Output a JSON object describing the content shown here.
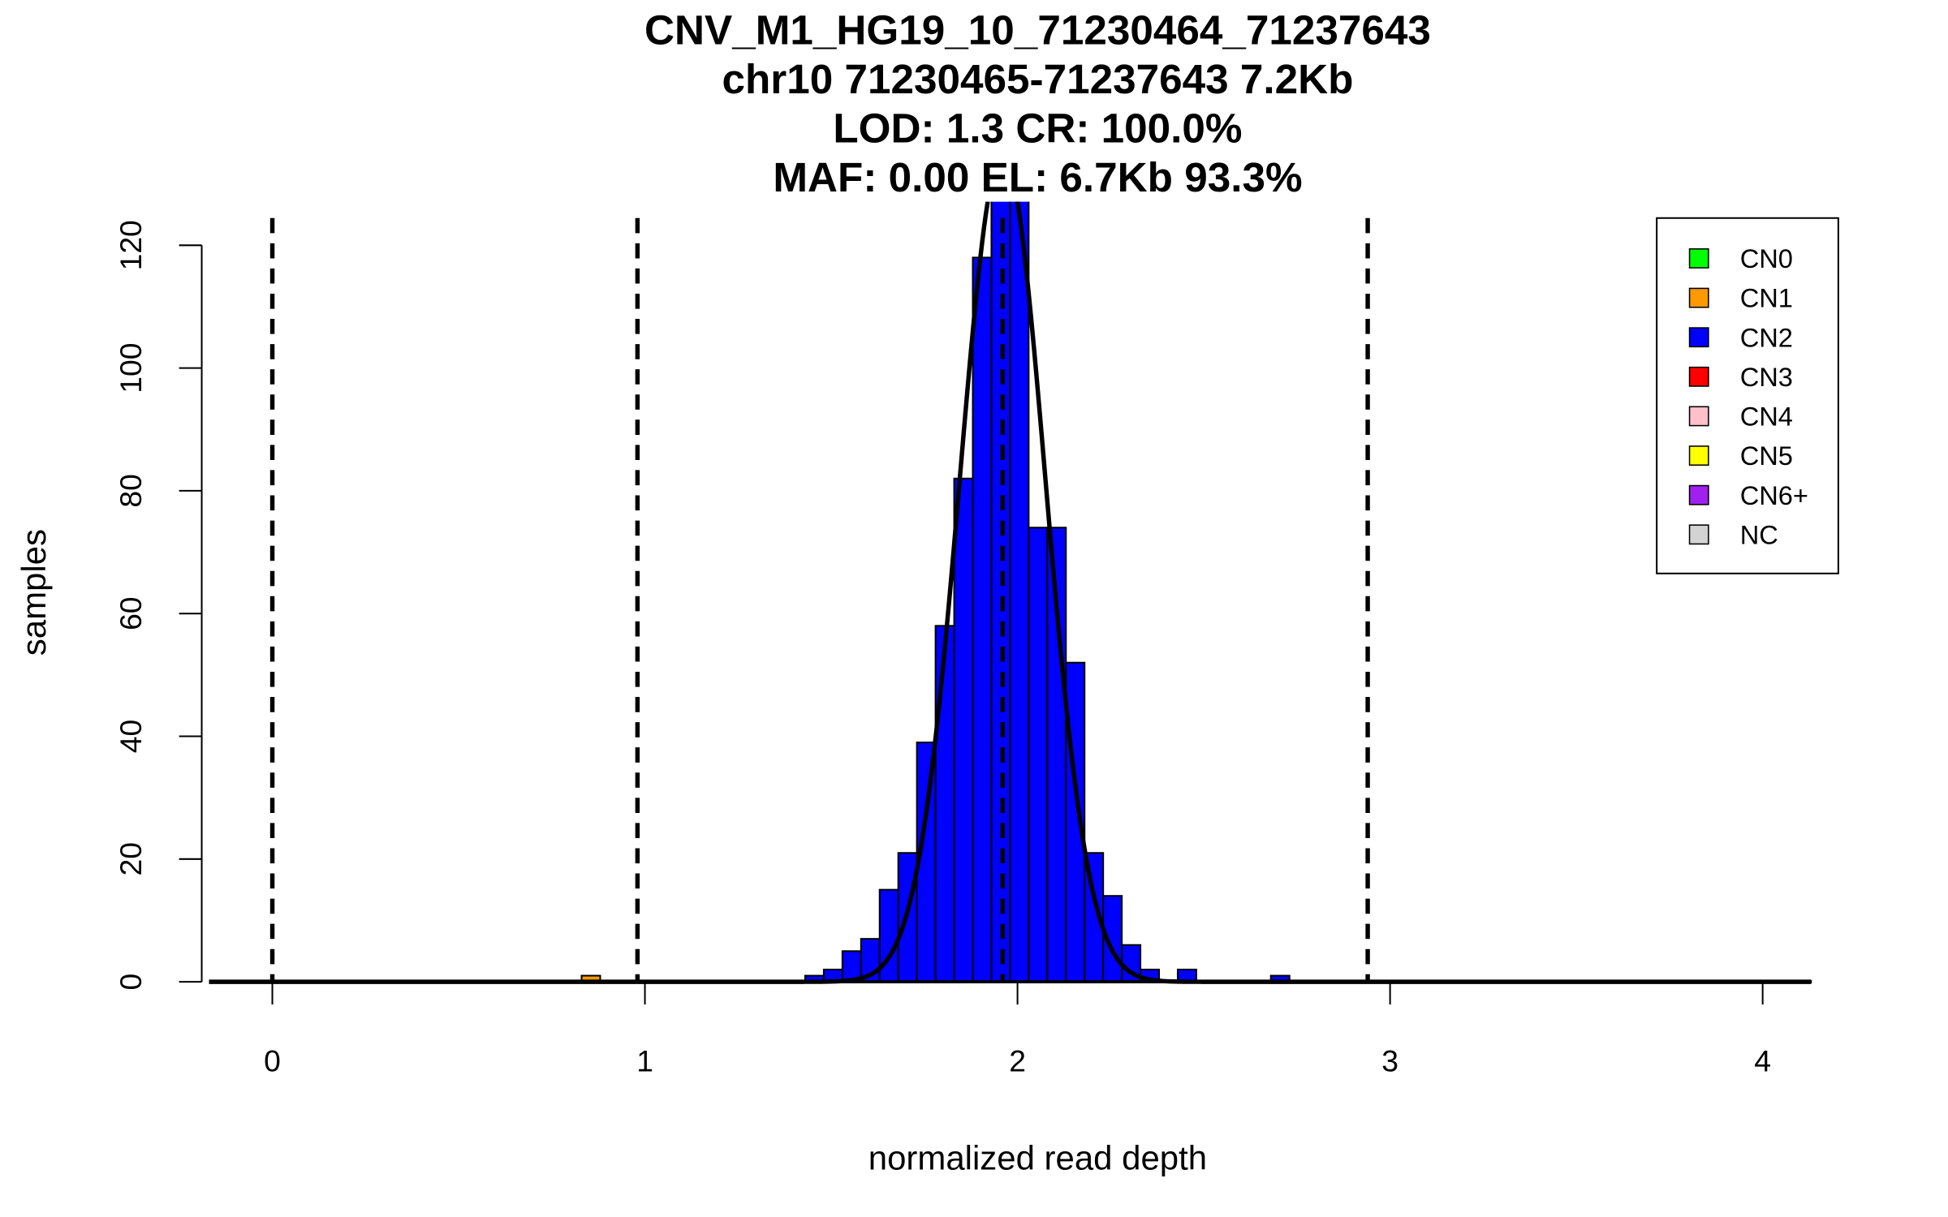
{
  "chart_data": {
    "type": "bar",
    "title_lines": [
      "CNV_M1_HG19_10_71230464_71237643",
      "chr10 71230465-71237643 7.2Kb",
      "LOD: 1.3 CR: 100.0%",
      "MAF: 0.00 EL: 6.7Kb 93.3%"
    ],
    "xlabel": "normalized read depth",
    "ylabel": "samples",
    "xlim": [
      -0.17,
      4.13
    ],
    "ylim": [
      0,
      127
    ],
    "x_ticks": [
      0,
      1,
      2,
      3,
      4
    ],
    "x_tick_labels": [
      "0",
      "1",
      "2",
      "3",
      "4"
    ],
    "y_ticks": [
      0,
      20,
      40,
      60,
      80,
      100,
      120
    ],
    "y_tick_labels": [
      "0",
      "20",
      "40",
      "60",
      "80",
      "100",
      "120"
    ],
    "bin_width": 0.05,
    "series": [
      {
        "name": "CN1",
        "color": "#FF9900",
        "bins": [
          {
            "start": 0.83,
            "count": 1
          }
        ]
      },
      {
        "name": "CN2",
        "color": "#0000FF",
        "bins": [
          {
            "start": 1.43,
            "count": 1
          },
          {
            "start": 1.48,
            "count": 2
          },
          {
            "start": 1.53,
            "count": 5
          },
          {
            "start": 1.58,
            "count": 7
          },
          {
            "start": 1.63,
            "count": 15
          },
          {
            "start": 1.68,
            "count": 21
          },
          {
            "start": 1.73,
            "count": 39
          },
          {
            "start": 1.78,
            "count": 58
          },
          {
            "start": 1.83,
            "count": 82
          },
          {
            "start": 1.88,
            "count": 118
          },
          {
            "start": 1.93,
            "count": 135
          },
          {
            "start": 1.98,
            "count": 130
          },
          {
            "start": 2.03,
            "count": 74
          },
          {
            "start": 2.08,
            "count": 74
          },
          {
            "start": 2.13,
            "count": 52
          },
          {
            "start": 2.18,
            "count": 21
          },
          {
            "start": 2.23,
            "count": 14
          },
          {
            "start": 2.28,
            "count": 6
          },
          {
            "start": 2.33,
            "count": 2
          },
          {
            "start": 2.43,
            "count": 2
          },
          {
            "start": 2.68,
            "count": 1
          }
        ]
      }
    ],
    "fit_curve": {
      "mean": 1.96,
      "sd": 0.115,
      "peak": 135
    },
    "dashed_lines_x": [
      0,
      0.98,
      1.96,
      2.94
    ],
    "legend": {
      "placement": "top-right",
      "entries": [
        {
          "label": "CN0",
          "color": "#00FF00"
        },
        {
          "label": "CN1",
          "color": "#FF9900"
        },
        {
          "label": "CN2",
          "color": "#0000FF"
        },
        {
          "label": "CN3",
          "color": "#FF0000"
        },
        {
          "label": "CN4",
          "color": "#FFC0CB"
        },
        {
          "label": "CN5",
          "color": "#FFFF00"
        },
        {
          "label": "CN6+",
          "color": "#A020F0"
        },
        {
          "label": "NC",
          "color": "#D3D3D3"
        }
      ]
    }
  }
}
